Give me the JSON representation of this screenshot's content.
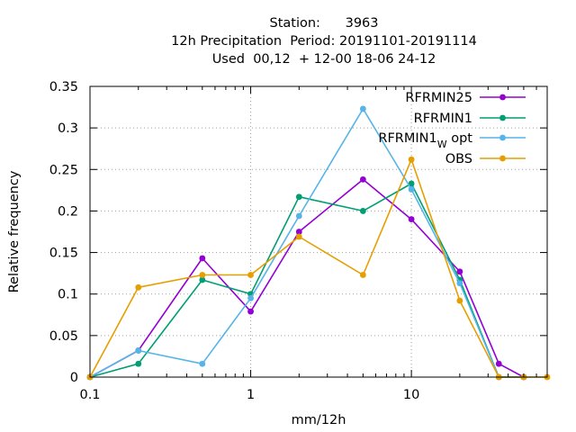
{
  "chart_data": {
    "type": "line",
    "title_lines": [
      "Station:      3963",
      "12h Precipitation  Period: 20191101-20191114",
      "Used  00,12  + 12-00 18-06 24-12"
    ],
    "xlabel": "mm/12h",
    "ylabel": "Relative frequency",
    "x_scale": "log",
    "xlim": [
      0.1,
      70
    ],
    "ylim": [
      0,
      0.35
    ],
    "x_ticks": [
      {
        "value": 0.1,
        "label": "0.1"
      },
      {
        "value": 1,
        "label": "1"
      },
      {
        "value": 10,
        "label": "10"
      }
    ],
    "y_ticks": [
      {
        "value": 0,
        "label": "0"
      },
      {
        "value": 0.05,
        "label": "0.05"
      },
      {
        "value": 0.1,
        "label": "0.1"
      },
      {
        "value": 0.15,
        "label": "0.15"
      },
      {
        "value": 0.2,
        "label": "0.2"
      },
      {
        "value": 0.25,
        "label": "0.25"
      },
      {
        "value": 0.3,
        "label": "0.3"
      },
      {
        "value": 0.35,
        "label": "0.35"
      }
    ],
    "grid": true,
    "legend_position": "top-right",
    "series": [
      {
        "name": "RFRMIN25",
        "color": "#9400d3",
        "x": [
          0.1,
          0.2,
          0.5,
          1,
          2,
          5,
          10,
          20,
          35,
          50
        ],
        "y": [
          0,
          0.032,
          0.143,
          0.079,
          0.175,
          0.238,
          0.19,
          0.127,
          0.016,
          0
        ]
      },
      {
        "name": "RFRMIN1",
        "color": "#009e73",
        "x": [
          0.1,
          0.2,
          0.5,
          1,
          2,
          5,
          10,
          20,
          35,
          50
        ],
        "y": [
          0,
          0.016,
          0.117,
          0.1,
          0.217,
          0.2,
          0.233,
          0.117,
          0,
          0
        ]
      },
      {
        "name": "RFRMIN1",
        "subscript": "W",
        "suffix": " opt",
        "color": "#56b4e9",
        "x": [
          0.1,
          0.2,
          0.5,
          1,
          2,
          5,
          10,
          20,
          35,
          50
        ],
        "y": [
          0,
          0.032,
          0.016,
          0.095,
          0.194,
          0.323,
          0.226,
          0.113,
          0,
          0
        ]
      },
      {
        "name": "OBS",
        "color": "#e69f00",
        "x": [
          0.1,
          0.2,
          0.5,
          1,
          2,
          5,
          10,
          20,
          35,
          50,
          70
        ],
        "y": [
          0,
          0.108,
          0.123,
          0.123,
          0.169,
          0.123,
          0.262,
          0.092,
          0,
          0,
          0
        ]
      }
    ]
  }
}
